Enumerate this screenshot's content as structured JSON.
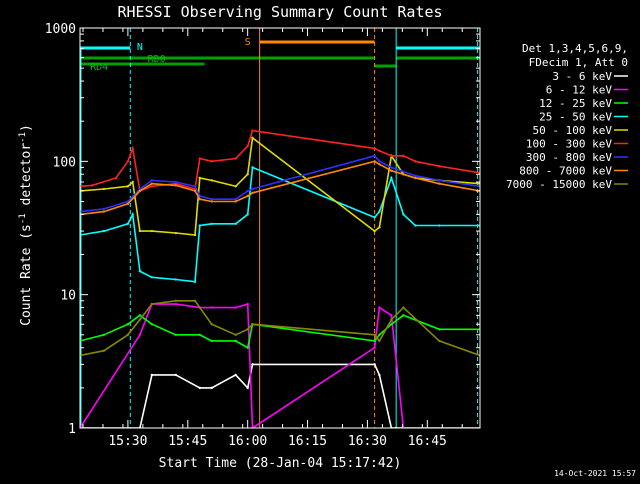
{
  "chart_data": {
    "type": "line",
    "title": "RHESSI Observing Summary Count Rates",
    "xlabel": "Start Time (28-Jan-04 15:17:42)",
    "ylabel_text": "Count Rate (s",
    "ylabel_sup": "-1",
    "ylabel_rest": " detector",
    "ylabel_sup2": "-1",
    "ylabel_end": ")",
    "yscale": "log",
    "ylim": [
      1,
      1000
    ],
    "xlim_minutes": [
      15.3,
      16.97
    ],
    "y_ticks": [
      {
        "value": 1,
        "label": "1"
      },
      {
        "value": 10,
        "label": "10"
      },
      {
        "value": 100,
        "label": "100"
      },
      {
        "value": 1000,
        "label": "1000"
      }
    ],
    "x_ticks": [
      {
        "value": 15.5,
        "label": "15:30"
      },
      {
        "value": 15.75,
        "label": "15:45"
      },
      {
        "value": 16.0,
        "label": "16:00"
      },
      {
        "value": 16.25,
        "label": "16:15"
      },
      {
        "value": 16.5,
        "label": "16:30"
      },
      {
        "value": 16.75,
        "label": "16:45"
      }
    ],
    "legend_header": [
      "Det 1,3,4,5,6,9,",
      "FDecim 1, Att 0"
    ],
    "legend_placement": "right",
    "series": [
      {
        "name": "3 - 6 keV",
        "color": "#ffffff",
        "x": [
          15.3,
          15.55,
          15.6,
          15.7,
          15.8,
          15.85,
          15.95,
          16.0,
          16.02,
          16.53,
          16.55,
          16.6,
          16.62,
          16.97
        ],
        "y": [
          1,
          1,
          2.5,
          2.5,
          2.0,
          2.0,
          2.5,
          2.0,
          3.0,
          3.0,
          2.5,
          1,
          1,
          1
        ]
      },
      {
        "name": "6 - 12 keV",
        "color": "#ff00ff",
        "x": [
          15.3,
          15.55,
          15.6,
          15.7,
          15.8,
          15.85,
          15.95,
          16.0,
          16.02,
          16.53,
          16.55,
          16.6,
          16.65,
          16.97
        ],
        "y": [
          1,
          5,
          8.5,
          8.5,
          8.0,
          8.0,
          8.0,
          8.5,
          1,
          4,
          8,
          7,
          1,
          1
        ]
      },
      {
        "name": "12 - 25 keV",
        "color": "#00ff00",
        "x": [
          15.3,
          15.4,
          15.5,
          15.55,
          15.6,
          15.7,
          15.8,
          15.85,
          15.95,
          16.0,
          16.02,
          16.53,
          16.55,
          16.6,
          16.65,
          16.8,
          16.97
        ],
        "y": [
          4.5,
          5,
          6,
          7,
          6,
          5,
          5,
          4.5,
          4.5,
          4,
          6,
          4.5,
          5,
          6,
          7,
          5.5,
          5.5
        ]
      },
      {
        "name": "25 - 50 keV",
        "color": "#00ffff",
        "x": [
          15.3,
          15.4,
          15.5,
          15.52,
          15.55,
          15.6,
          15.7,
          15.78,
          15.8,
          15.85,
          15.95,
          16.0,
          16.02,
          16.53,
          16.55,
          16.6,
          16.65,
          16.7,
          16.8,
          16.97
        ],
        "y": [
          28,
          30,
          34,
          40,
          15,
          13.5,
          13,
          12.5,
          33,
          34,
          34,
          40,
          90,
          38,
          42,
          75,
          40,
          33,
          33,
          33
        ]
      },
      {
        "name": "50 - 100 keV",
        "color": "#dddd00",
        "x": [
          15.3,
          15.4,
          15.5,
          15.52,
          15.55,
          15.6,
          15.7,
          15.78,
          15.8,
          15.85,
          15.95,
          16.0,
          16.02,
          16.53,
          16.55,
          16.6,
          16.65,
          16.7,
          16.8,
          16.97
        ],
        "y": [
          60,
          62,
          65,
          70,
          30,
          30,
          29,
          28,
          75,
          72,
          65,
          80,
          150,
          30,
          32,
          110,
          80,
          75,
          72,
          68
        ]
      },
      {
        "name": "100 - 300 keV",
        "color": "#ff2222",
        "x": [
          15.3,
          15.35,
          15.45,
          15.5,
          15.52,
          15.55,
          15.6,
          15.7,
          15.78,
          15.8,
          15.85,
          15.95,
          16.0,
          16.02,
          16.53,
          16.55,
          16.6,
          16.65,
          16.7,
          16.8,
          16.97
        ],
        "y": [
          65,
          66,
          75,
          100,
          125,
          60,
          65,
          68,
          62,
          105,
          100,
          105,
          130,
          170,
          125,
          120,
          110,
          110,
          100,
          92,
          82
        ]
      },
      {
        "name": "300 - 800 keV",
        "color": "#3030ff",
        "x": [
          15.3,
          15.4,
          15.5,
          15.55,
          15.6,
          15.7,
          15.78,
          15.8,
          15.85,
          15.95,
          16.0,
          16.02,
          16.53,
          16.55,
          16.6,
          16.7,
          16.8,
          16.97
        ],
        "y": [
          42,
          44,
          50,
          62,
          72,
          70,
          65,
          55,
          52,
          52,
          60,
          62,
          110,
          100,
          90,
          78,
          72,
          65
        ]
      },
      {
        "name": "800 - 7000 keV",
        "color": "#ff8800",
        "x": [
          15.3,
          15.4,
          15.5,
          15.55,
          15.6,
          15.7,
          15.78,
          15.8,
          15.85,
          15.95,
          16.0,
          16.02,
          16.53,
          16.55,
          16.6,
          16.7,
          16.8,
          16.97
        ],
        "y": [
          40,
          42,
          48,
          60,
          68,
          66,
          60,
          52,
          50,
          50,
          55,
          58,
          100,
          95,
          85,
          75,
          68,
          60
        ]
      },
      {
        "name": "7000 - 15000 keV",
        "color": "#888800",
        "x": [
          15.3,
          15.4,
          15.5,
          15.55,
          15.6,
          15.7,
          15.78,
          15.8,
          15.85,
          15.95,
          16.0,
          16.02,
          16.53,
          16.55,
          16.6,
          16.65,
          16.8,
          16.97
        ],
        "y": [
          3.5,
          3.8,
          5,
          6.5,
          8.5,
          9,
          9,
          8,
          6,
          5,
          5.5,
          6,
          5,
          4.5,
          6.5,
          8,
          4.5,
          3.5
        ]
      }
    ],
    "annotations": [
      {
        "label": "N",
        "color": "#00ffff"
      },
      {
        "label": "RD0",
        "color": "#00c000"
      },
      {
        "label": "RD4",
        "color": "#00c000"
      },
      {
        "label": "S",
        "color": "#ff8800"
      }
    ]
  },
  "footer": {
    "date": "14-Oct-2021 15:57"
  }
}
